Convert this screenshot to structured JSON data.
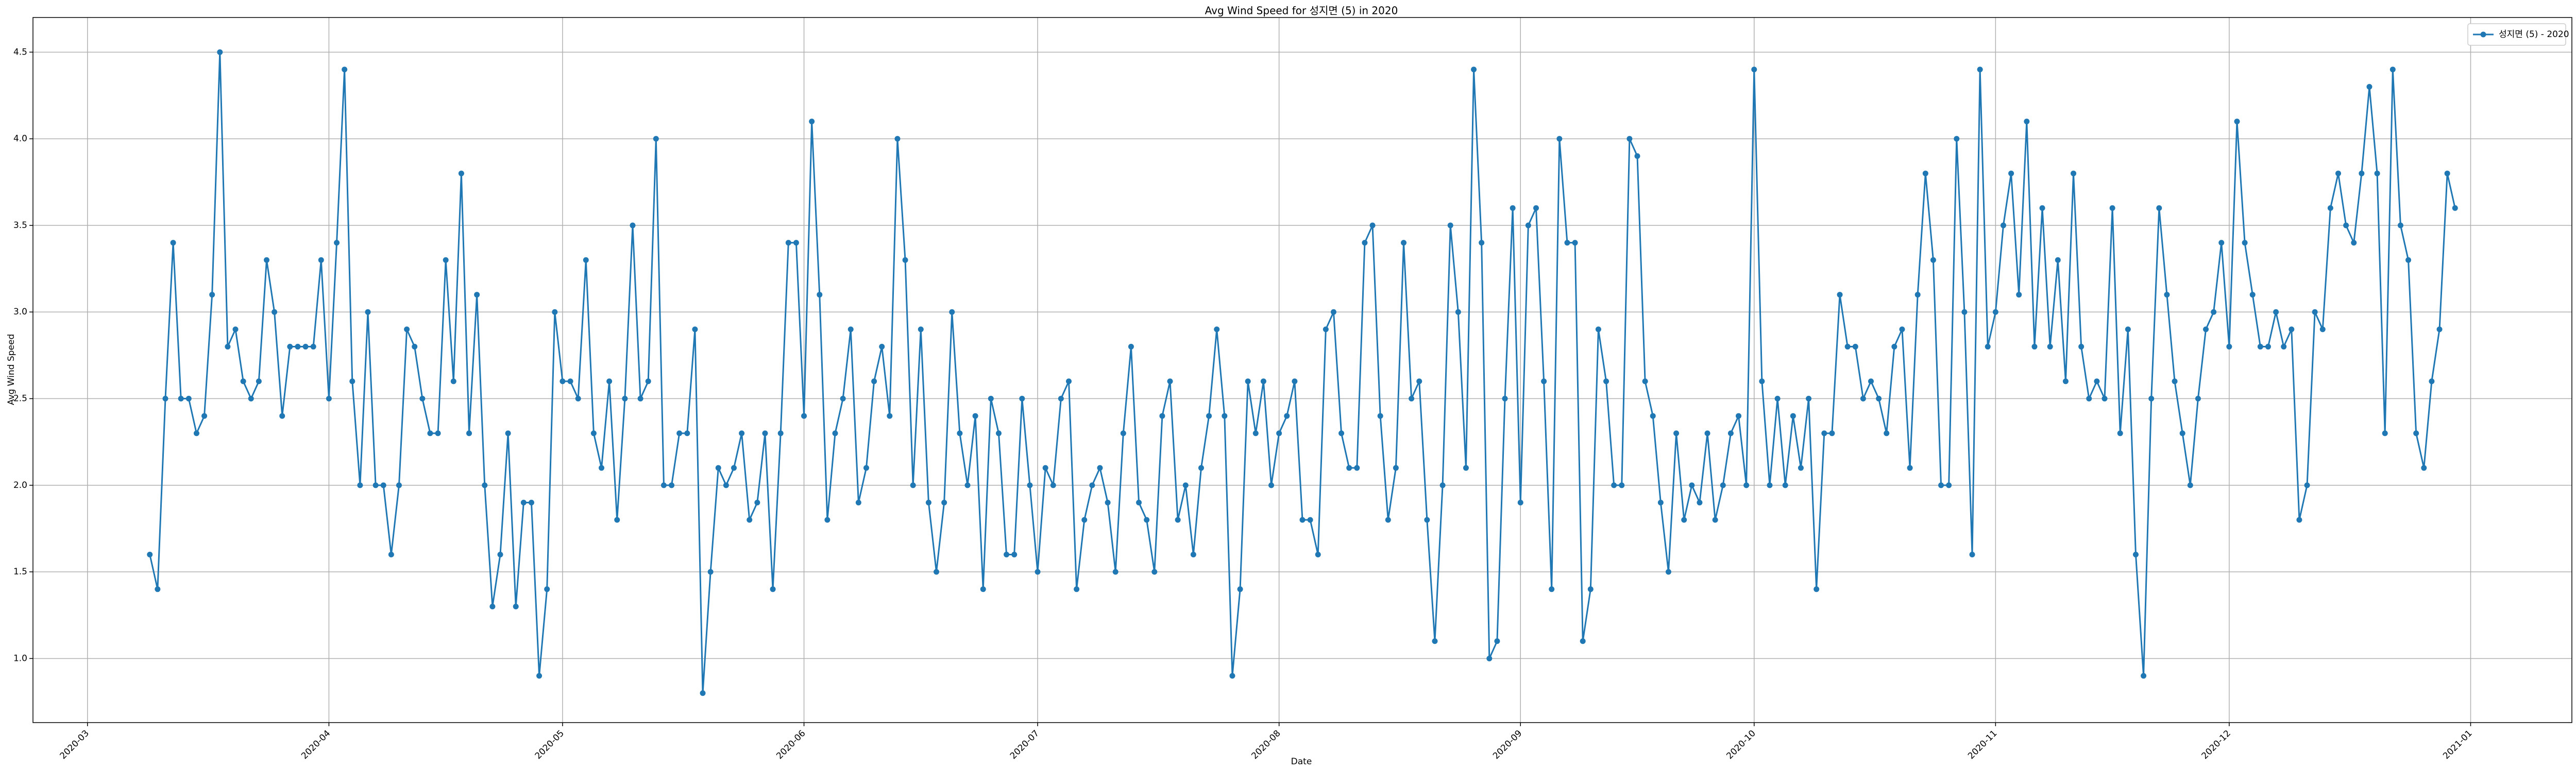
{
  "chart_data": {
    "type": "line",
    "title": "Avg Wind Speed for 성지면 (5) in 2020",
    "xlabel": "Date",
    "ylabel": "Avg Wind Speed",
    "x": [
      "2020-03-09",
      "2020-03-10",
      "2020-03-11",
      "2020-03-12",
      "2020-03-13",
      "2020-03-14",
      "2020-03-15",
      "2020-03-16",
      "2020-03-17",
      "2020-03-18",
      "2020-03-19",
      "2020-03-20",
      "2020-03-21",
      "2020-03-22",
      "2020-03-23",
      "2020-03-24",
      "2020-03-25",
      "2020-03-26",
      "2020-03-27",
      "2020-03-28",
      "2020-03-29",
      "2020-03-30",
      "2020-03-31",
      "2020-04-01",
      "2020-04-02",
      "2020-04-03",
      "2020-04-04",
      "2020-04-05",
      "2020-04-06",
      "2020-04-07",
      "2020-04-08",
      "2020-04-09",
      "2020-04-10",
      "2020-04-11",
      "2020-04-12",
      "2020-04-13",
      "2020-04-14",
      "2020-04-15",
      "2020-04-16",
      "2020-04-17",
      "2020-04-18",
      "2020-04-19",
      "2020-04-20",
      "2020-04-21",
      "2020-04-22",
      "2020-04-23",
      "2020-04-24",
      "2020-04-25",
      "2020-04-26",
      "2020-04-27",
      "2020-04-28",
      "2020-04-29",
      "2020-04-30",
      "2020-05-01",
      "2020-05-02",
      "2020-05-03",
      "2020-05-04",
      "2020-05-05",
      "2020-05-06",
      "2020-05-07",
      "2020-05-08",
      "2020-05-09",
      "2020-05-10",
      "2020-05-11",
      "2020-05-12",
      "2020-05-13",
      "2020-05-14",
      "2020-05-15",
      "2020-05-16",
      "2020-05-17",
      "2020-05-18",
      "2020-05-19",
      "2020-05-20",
      "2020-05-21",
      "2020-05-22",
      "2020-05-23",
      "2020-05-24",
      "2020-05-25",
      "2020-05-26",
      "2020-05-27",
      "2020-05-28",
      "2020-05-29",
      "2020-05-30",
      "2020-05-31",
      "2020-06-01",
      "2020-06-02",
      "2020-06-03",
      "2020-06-04",
      "2020-06-05",
      "2020-06-06",
      "2020-06-07",
      "2020-06-08",
      "2020-06-09",
      "2020-06-10",
      "2020-06-11",
      "2020-06-12",
      "2020-06-13",
      "2020-06-14",
      "2020-06-15",
      "2020-06-16",
      "2020-06-17",
      "2020-06-18",
      "2020-06-19",
      "2020-06-20",
      "2020-06-21",
      "2020-06-22",
      "2020-06-23",
      "2020-06-24",
      "2020-06-25",
      "2020-06-26",
      "2020-06-27",
      "2020-06-28",
      "2020-06-29",
      "2020-06-30",
      "2020-07-01",
      "2020-07-02",
      "2020-07-03",
      "2020-07-04",
      "2020-07-05",
      "2020-07-06",
      "2020-07-07",
      "2020-07-08",
      "2020-07-09",
      "2020-07-10",
      "2020-07-11",
      "2020-07-12",
      "2020-07-13",
      "2020-07-14",
      "2020-07-15",
      "2020-07-16",
      "2020-07-17",
      "2020-07-18",
      "2020-07-19",
      "2020-07-20",
      "2020-07-21",
      "2020-07-22",
      "2020-07-23",
      "2020-07-24",
      "2020-07-25",
      "2020-07-26",
      "2020-07-27",
      "2020-07-28",
      "2020-07-29",
      "2020-07-30",
      "2020-07-31",
      "2020-08-01",
      "2020-08-02",
      "2020-08-03",
      "2020-08-04",
      "2020-08-05",
      "2020-08-06",
      "2020-08-07",
      "2020-08-08",
      "2020-08-09",
      "2020-08-10",
      "2020-08-11",
      "2020-08-12",
      "2020-08-13",
      "2020-08-14",
      "2020-08-15",
      "2020-08-16",
      "2020-08-17",
      "2020-08-18",
      "2020-08-19",
      "2020-08-20",
      "2020-08-21",
      "2020-08-22",
      "2020-08-23",
      "2020-08-24",
      "2020-08-25",
      "2020-08-26",
      "2020-08-27",
      "2020-08-28",
      "2020-08-29",
      "2020-08-30",
      "2020-08-31",
      "2020-09-01",
      "2020-09-02",
      "2020-09-03",
      "2020-09-04",
      "2020-09-05",
      "2020-09-06",
      "2020-09-07",
      "2020-09-08",
      "2020-09-09",
      "2020-09-10",
      "2020-09-11",
      "2020-09-12",
      "2020-09-13",
      "2020-09-14",
      "2020-09-15",
      "2020-09-16",
      "2020-09-17",
      "2020-09-18",
      "2020-09-19",
      "2020-09-20",
      "2020-09-21",
      "2020-09-22",
      "2020-09-23",
      "2020-09-24",
      "2020-09-25",
      "2020-09-26",
      "2020-09-27",
      "2020-09-28",
      "2020-09-29",
      "2020-09-30",
      "2020-10-01",
      "2020-10-02",
      "2020-10-03",
      "2020-10-04",
      "2020-10-05",
      "2020-10-06",
      "2020-10-07",
      "2020-10-08",
      "2020-10-09",
      "2020-10-10",
      "2020-10-11",
      "2020-10-12",
      "2020-10-13",
      "2020-10-14",
      "2020-10-15",
      "2020-10-16",
      "2020-10-17",
      "2020-10-18",
      "2020-10-19",
      "2020-10-20",
      "2020-10-21",
      "2020-10-22",
      "2020-10-23",
      "2020-10-24",
      "2020-10-25",
      "2020-10-26",
      "2020-10-27",
      "2020-10-28",
      "2020-10-29",
      "2020-10-30",
      "2020-10-31",
      "2020-11-01",
      "2020-11-02",
      "2020-11-03",
      "2020-11-04",
      "2020-11-05",
      "2020-11-06",
      "2020-11-07",
      "2020-11-08",
      "2020-11-09",
      "2020-11-10",
      "2020-11-11",
      "2020-11-12",
      "2020-11-13",
      "2020-11-14",
      "2020-11-15",
      "2020-11-16",
      "2020-11-17",
      "2020-11-18",
      "2020-11-19",
      "2020-11-20",
      "2020-11-21",
      "2020-11-22",
      "2020-11-23",
      "2020-11-24",
      "2020-11-25",
      "2020-11-26",
      "2020-11-27",
      "2020-11-28",
      "2020-11-29",
      "2020-11-30",
      "2020-12-01",
      "2020-12-02",
      "2020-12-03",
      "2020-12-04",
      "2020-12-05",
      "2020-12-06",
      "2020-12-07",
      "2020-12-08",
      "2020-12-09",
      "2020-12-10",
      "2020-12-11",
      "2020-12-12",
      "2020-12-13",
      "2020-12-14",
      "2020-12-15",
      "2020-12-16",
      "2020-12-17",
      "2020-12-18",
      "2020-12-19",
      "2020-12-20",
      "2020-12-21",
      "2020-12-22",
      "2020-12-23",
      "2020-12-24",
      "2020-12-25",
      "2020-12-26",
      "2020-12-27",
      "2020-12-28",
      "2020-12-29",
      "2020-12-30"
    ],
    "series": [
      {
        "name": "성지면 (5) - 2020",
        "color": "#1f77b4",
        "values": [
          1.6,
          1.4,
          2.5,
          3.4,
          2.5,
          2.5,
          2.3,
          2.4,
          3.1,
          4.5,
          2.8,
          2.9,
          2.6,
          2.5,
          2.6,
          3.3,
          3.0,
          2.4,
          2.8,
          2.8,
          2.8,
          2.8,
          3.3,
          2.5,
          3.4,
          4.4,
          2.6,
          2.0,
          3.0,
          2.0,
          2.0,
          1.6,
          2.0,
          2.9,
          2.8,
          2.5,
          2.3,
          2.3,
          3.3,
          2.6,
          3.8,
          2.3,
          3.1,
          2.0,
          1.3,
          1.6,
          2.3,
          1.3,
          1.9,
          1.9,
          0.9,
          1.4,
          3.0,
          2.6,
          2.6,
          2.5,
          3.3,
          2.3,
          2.1,
          2.6,
          1.8,
          2.5,
          3.5,
          2.5,
          2.6,
          4.0,
          2.0,
          2.0,
          2.3,
          2.3,
          2.9,
          0.8,
          1.5,
          2.1,
          2.0,
          2.1,
          2.3,
          1.8,
          1.9,
          2.3,
          1.4,
          2.3,
          3.4,
          3.4,
          2.4,
          4.1,
          3.1,
          1.8,
          2.3,
          2.5,
          2.9,
          1.9,
          2.1,
          2.6,
          2.8,
          2.4,
          4.0,
          3.3,
          2.0,
          2.9,
          1.9,
          1.5,
          1.9,
          3.0,
          2.3,
          2.0,
          2.4,
          1.4,
          2.5,
          2.3,
          1.6,
          1.6,
          2.5,
          2.0,
          1.5,
          2.1,
          2.0,
          2.5,
          2.6,
          1.4,
          1.8,
          2.0,
          2.1,
          1.9,
          1.5,
          2.3,
          2.8,
          1.9,
          1.8,
          1.5,
          2.4,
          2.6,
          1.8,
          2.0,
          1.6,
          2.1,
          2.4,
          2.9,
          2.4,
          0.9,
          1.4,
          2.6,
          2.3,
          2.6,
          2.0,
          2.3,
          2.4,
          2.6,
          1.8,
          1.8,
          1.6,
          2.9,
          3.0,
          2.3,
          2.1,
          2.1,
          3.4,
          3.5,
          2.4,
          1.8,
          2.1,
          3.4,
          2.5,
          2.6,
          1.8,
          1.1,
          2.0,
          3.5,
          3.0,
          2.1,
          4.4,
          3.4,
          1.0,
          1.1,
          2.5,
          3.6,
          1.9,
          3.5,
          3.6,
          2.6,
          1.4,
          4.0,
          3.4,
          3.4,
          1.1,
          1.4,
          2.9,
          2.6,
          2.0,
          2.0,
          4.0,
          3.9,
          2.6,
          2.4,
          1.9,
          1.5,
          2.3,
          1.8,
          2.0,
          1.9,
          2.3,
          1.8,
          2.0,
          2.3,
          2.4,
          2.0,
          4.4,
          2.6,
          2.0,
          2.5,
          2.0,
          2.4,
          2.1,
          2.5,
          1.4,
          2.3,
          2.3,
          3.1,
          2.8,
          2.8,
          2.5,
          2.6,
          2.5,
          2.3,
          2.8,
          2.9,
          2.1,
          3.1,
          3.8,
          3.3,
          2.0,
          2.0,
          4.0,
          3.0,
          1.6,
          4.4,
          2.8,
          3.0,
          3.5,
          3.8,
          3.1,
          4.1,
          2.8,
          3.6,
          2.8,
          3.3,
          2.6,
          3.8,
          2.8,
          2.5,
          2.6,
          2.5,
          3.6,
          2.3,
          2.9,
          1.6,
          0.9,
          2.5,
          3.6,
          3.1,
          2.6,
          2.3,
          2.0,
          2.5,
          2.9,
          3.0,
          3.4,
          2.8,
          4.1,
          3.4,
          3.1,
          2.8,
          2.8,
          3.0,
          2.8,
          2.9,
          1.8,
          2.0,
          3.0,
          2.9,
          3.6,
          3.8,
          3.5,
          3.4,
          3.8,
          4.3,
          3.8,
          2.3,
          4.4,
          3.5,
          3.3,
          2.3,
          2.1,
          2.6,
          2.9,
          3.8,
          3.6
        ]
      }
    ],
    "xlim": [
      "2020-02-23",
      "2021-01-14"
    ],
    "xticks": [
      {
        "value": "2020-03-01",
        "label": "2020-03"
      },
      {
        "value": "2020-04-01",
        "label": "2020-04"
      },
      {
        "value": "2020-05-01",
        "label": "2020-05"
      },
      {
        "value": "2020-06-01",
        "label": "2020-06"
      },
      {
        "value": "2020-07-01",
        "label": "2020-07"
      },
      {
        "value": "2020-08-01",
        "label": "2020-08"
      },
      {
        "value": "2020-09-01",
        "label": "2020-09"
      },
      {
        "value": "2020-10-01",
        "label": "2020-10"
      },
      {
        "value": "2020-11-01",
        "label": "2020-11"
      },
      {
        "value": "2020-12-01",
        "label": "2020-12"
      },
      {
        "value": "2021-01-01",
        "label": "2021-01"
      }
    ],
    "ylim": [
      0.63,
      4.7
    ],
    "yticks": [
      {
        "value": 1,
        "label": "1.0"
      },
      1.5,
      {
        "value": 2,
        "label": "2.0"
      },
      2.5,
      {
        "value": 3,
        "label": "3.0"
      },
      3.5,
      {
        "value": 4,
        "label": "4.0"
      },
      4.5
    ],
    "grid": true,
    "legend": "upper right",
    "marker": "o"
  }
}
